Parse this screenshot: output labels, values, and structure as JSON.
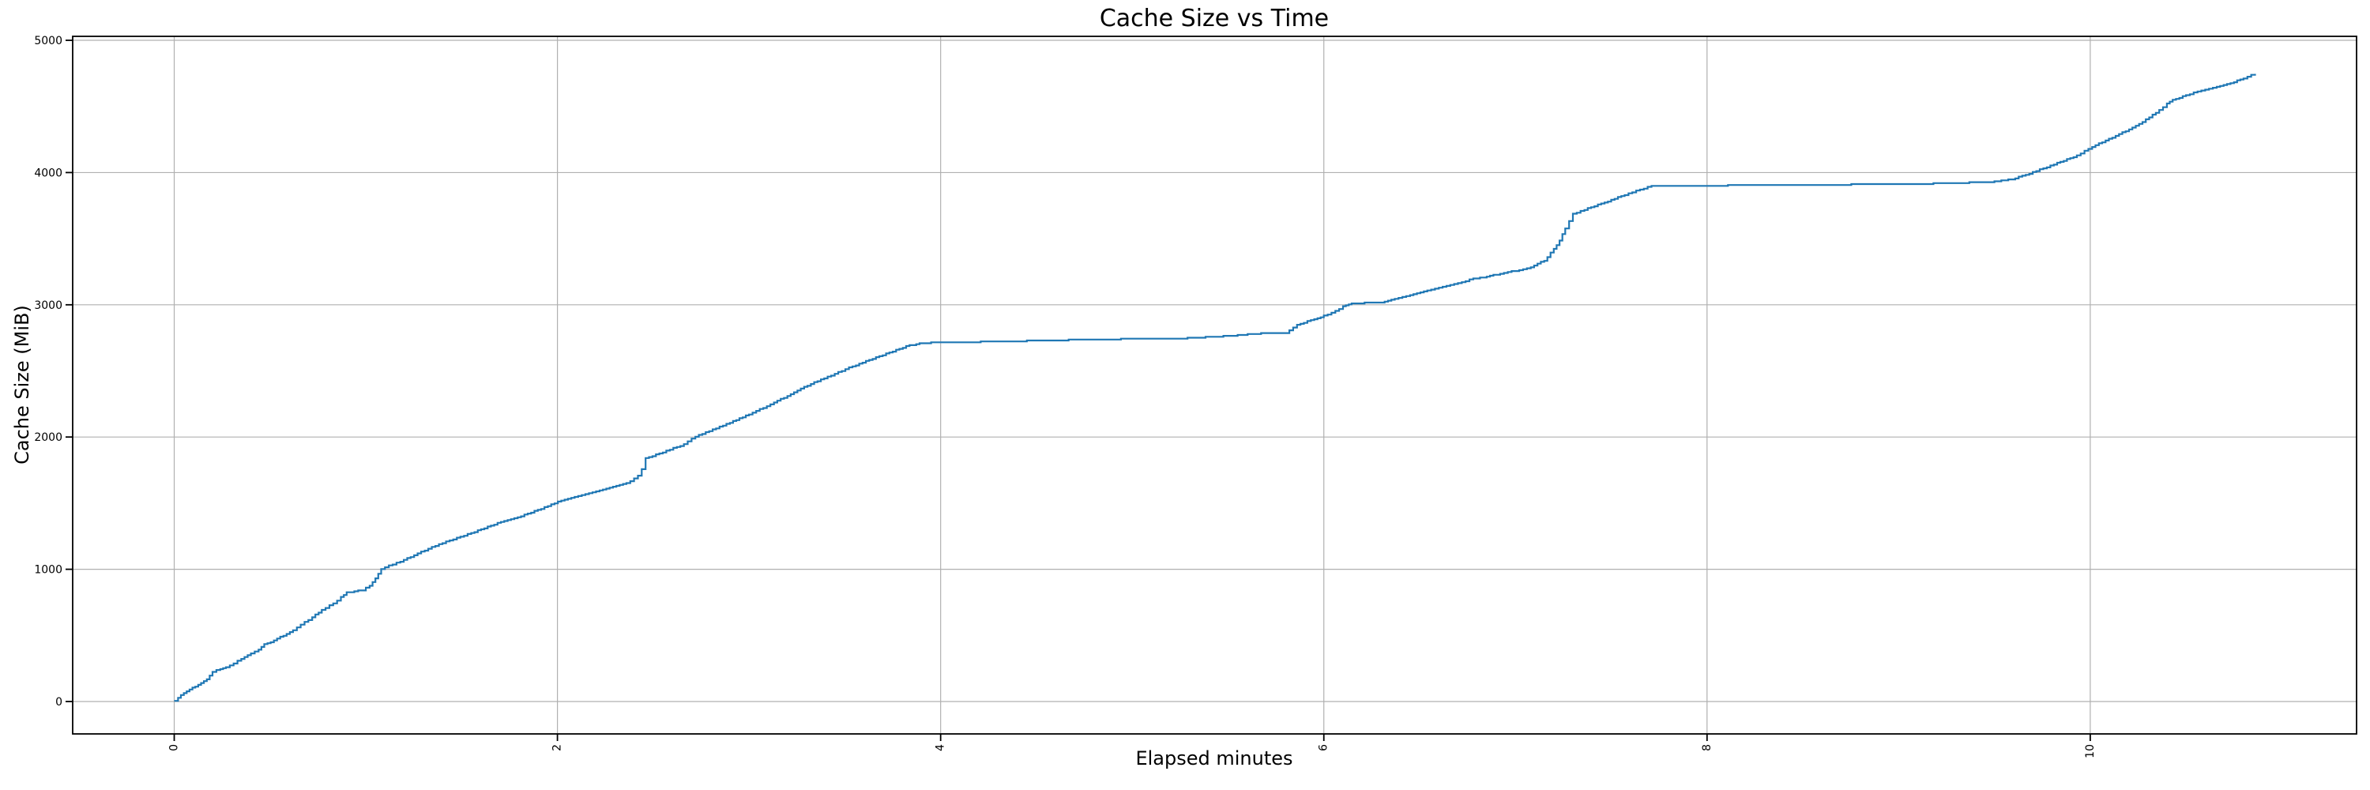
{
  "figure": {
    "title": "Cache Size vs Time",
    "x_axis": {
      "label": "Elapsed minutes",
      "tick_labels": [
        "0",
        "2",
        "4",
        "6",
        "8",
        "10"
      ],
      "tick_rotation_deg": 90
    },
    "y_axis": {
      "label": "Cache Size (MiB)",
      "tick_labels": [
        "0",
        "1000",
        "2000",
        "3000",
        "4000",
        "5000"
      ]
    },
    "colors": {
      "line": "#1f77b4",
      "grid": "#b0b0b0",
      "spine": "#000000",
      "background": "#ffffff",
      "text": "#000000"
    }
  },
  "chart_data": {
    "type": "line",
    "title": "Cache Size vs Time",
    "xlabel": "Elapsed minutes",
    "ylabel": "Cache Size (MiB)",
    "xlim": [
      -0.53,
      11.39
    ],
    "ylim": [
      -245,
      5030
    ],
    "x_ticks": [
      0,
      2,
      4,
      6,
      8,
      10
    ],
    "y_ticks": [
      0,
      1000,
      2000,
      3000,
      4000,
      5000
    ],
    "grid": "on",
    "legend_position": "none",
    "series": [
      {
        "name": "cache_size_mib",
        "color": "#1f77b4",
        "points": [
          [
            0.0,
            5
          ],
          [
            0.02,
            30
          ],
          [
            0.05,
            62
          ],
          [
            0.08,
            90
          ],
          [
            0.11,
            115
          ],
          [
            0.14,
            142
          ],
          [
            0.17,
            168
          ],
          [
            0.2,
            225
          ],
          [
            0.24,
            248
          ],
          [
            0.27,
            258
          ],
          [
            0.31,
            288
          ],
          [
            0.35,
            325
          ],
          [
            0.4,
            362
          ],
          [
            0.44,
            395
          ],
          [
            0.47,
            432
          ],
          [
            0.52,
            460
          ],
          [
            0.57,
            500
          ],
          [
            0.62,
            540
          ],
          [
            0.66,
            578
          ],
          [
            0.72,
            640
          ],
          [
            0.77,
            690
          ],
          [
            0.83,
            742
          ],
          [
            0.87,
            788
          ],
          [
            0.9,
            825
          ],
          [
            0.94,
            833
          ],
          [
            0.98,
            842
          ],
          [
            1.02,
            876
          ],
          [
            1.05,
            930
          ],
          [
            1.08,
            1000
          ],
          [
            1.12,
            1030
          ],
          [
            1.18,
            1058
          ],
          [
            1.27,
            1120
          ],
          [
            1.4,
            1200
          ],
          [
            1.55,
            1275
          ],
          [
            1.67,
            1340
          ],
          [
            1.81,
            1402
          ],
          [
            1.95,
            1478
          ],
          [
            2.02,
            1520
          ],
          [
            2.09,
            1545
          ],
          [
            2.22,
            1598
          ],
          [
            2.36,
            1650
          ],
          [
            2.42,
            1705
          ],
          [
            2.44,
            1760
          ],
          [
            2.46,
            1840
          ],
          [
            2.55,
            1885
          ],
          [
            2.66,
            1945
          ],
          [
            2.72,
            2005
          ],
          [
            2.9,
            2110
          ],
          [
            3.0,
            2172
          ],
          [
            3.13,
            2258
          ],
          [
            3.27,
            2368
          ],
          [
            3.41,
            2455
          ],
          [
            3.54,
            2535
          ],
          [
            3.68,
            2610
          ],
          [
            3.82,
            2687
          ],
          [
            3.89,
            2707
          ],
          [
            3.95,
            2713
          ],
          [
            4.1,
            2717
          ],
          [
            4.3,
            2722
          ],
          [
            4.45,
            2727
          ],
          [
            4.65,
            2733
          ],
          [
            4.85,
            2739
          ],
          [
            5.05,
            2743
          ],
          [
            5.27,
            2747
          ],
          [
            5.42,
            2758
          ],
          [
            5.55,
            2770
          ],
          [
            5.69,
            2786
          ],
          [
            5.8,
            2788
          ],
          [
            5.86,
            2846
          ],
          [
            5.95,
            2892
          ],
          [
            6.0,
            2916
          ],
          [
            6.06,
            2956
          ],
          [
            6.1,
            2986
          ],
          [
            6.13,
            3006
          ],
          [
            6.16,
            3012
          ],
          [
            6.3,
            3016
          ],
          [
            6.37,
            3046
          ],
          [
            6.45,
            3076
          ],
          [
            6.54,
            3106
          ],
          [
            6.62,
            3136
          ],
          [
            6.7,
            3166
          ],
          [
            6.78,
            3196
          ],
          [
            6.85,
            3212
          ],
          [
            6.92,
            3236
          ],
          [
            7.0,
            3258
          ],
          [
            7.08,
            3285
          ],
          [
            7.15,
            3335
          ],
          [
            7.2,
            3420
          ],
          [
            7.23,
            3488
          ],
          [
            7.26,
            3580
          ],
          [
            7.3,
            3690
          ],
          [
            7.36,
            3718
          ],
          [
            7.43,
            3756
          ],
          [
            7.5,
            3792
          ],
          [
            7.57,
            3832
          ],
          [
            7.65,
            3872
          ],
          [
            7.71,
            3897
          ],
          [
            7.76,
            3902
          ],
          [
            8.0,
            3902
          ],
          [
            8.2,
            3903
          ],
          [
            8.5,
            3906
          ],
          [
            8.7,
            3909
          ],
          [
            9.0,
            3913
          ],
          [
            9.2,
            3917
          ],
          [
            9.35,
            3923
          ],
          [
            9.5,
            3931
          ],
          [
            9.59,
            3948
          ],
          [
            9.7,
            4002
          ],
          [
            9.81,
            4062
          ],
          [
            9.93,
            4128
          ],
          [
            10.01,
            4195
          ],
          [
            10.15,
            4290
          ],
          [
            10.22,
            4340
          ],
          [
            10.29,
            4400
          ],
          [
            10.36,
            4470
          ],
          [
            10.4,
            4520
          ],
          [
            10.43,
            4548
          ],
          [
            10.5,
            4585
          ],
          [
            10.58,
            4620
          ],
          [
            10.66,
            4650
          ],
          [
            10.75,
            4685
          ],
          [
            10.8,
            4712
          ],
          [
            10.86,
            4748
          ]
        ]
      }
    ]
  }
}
